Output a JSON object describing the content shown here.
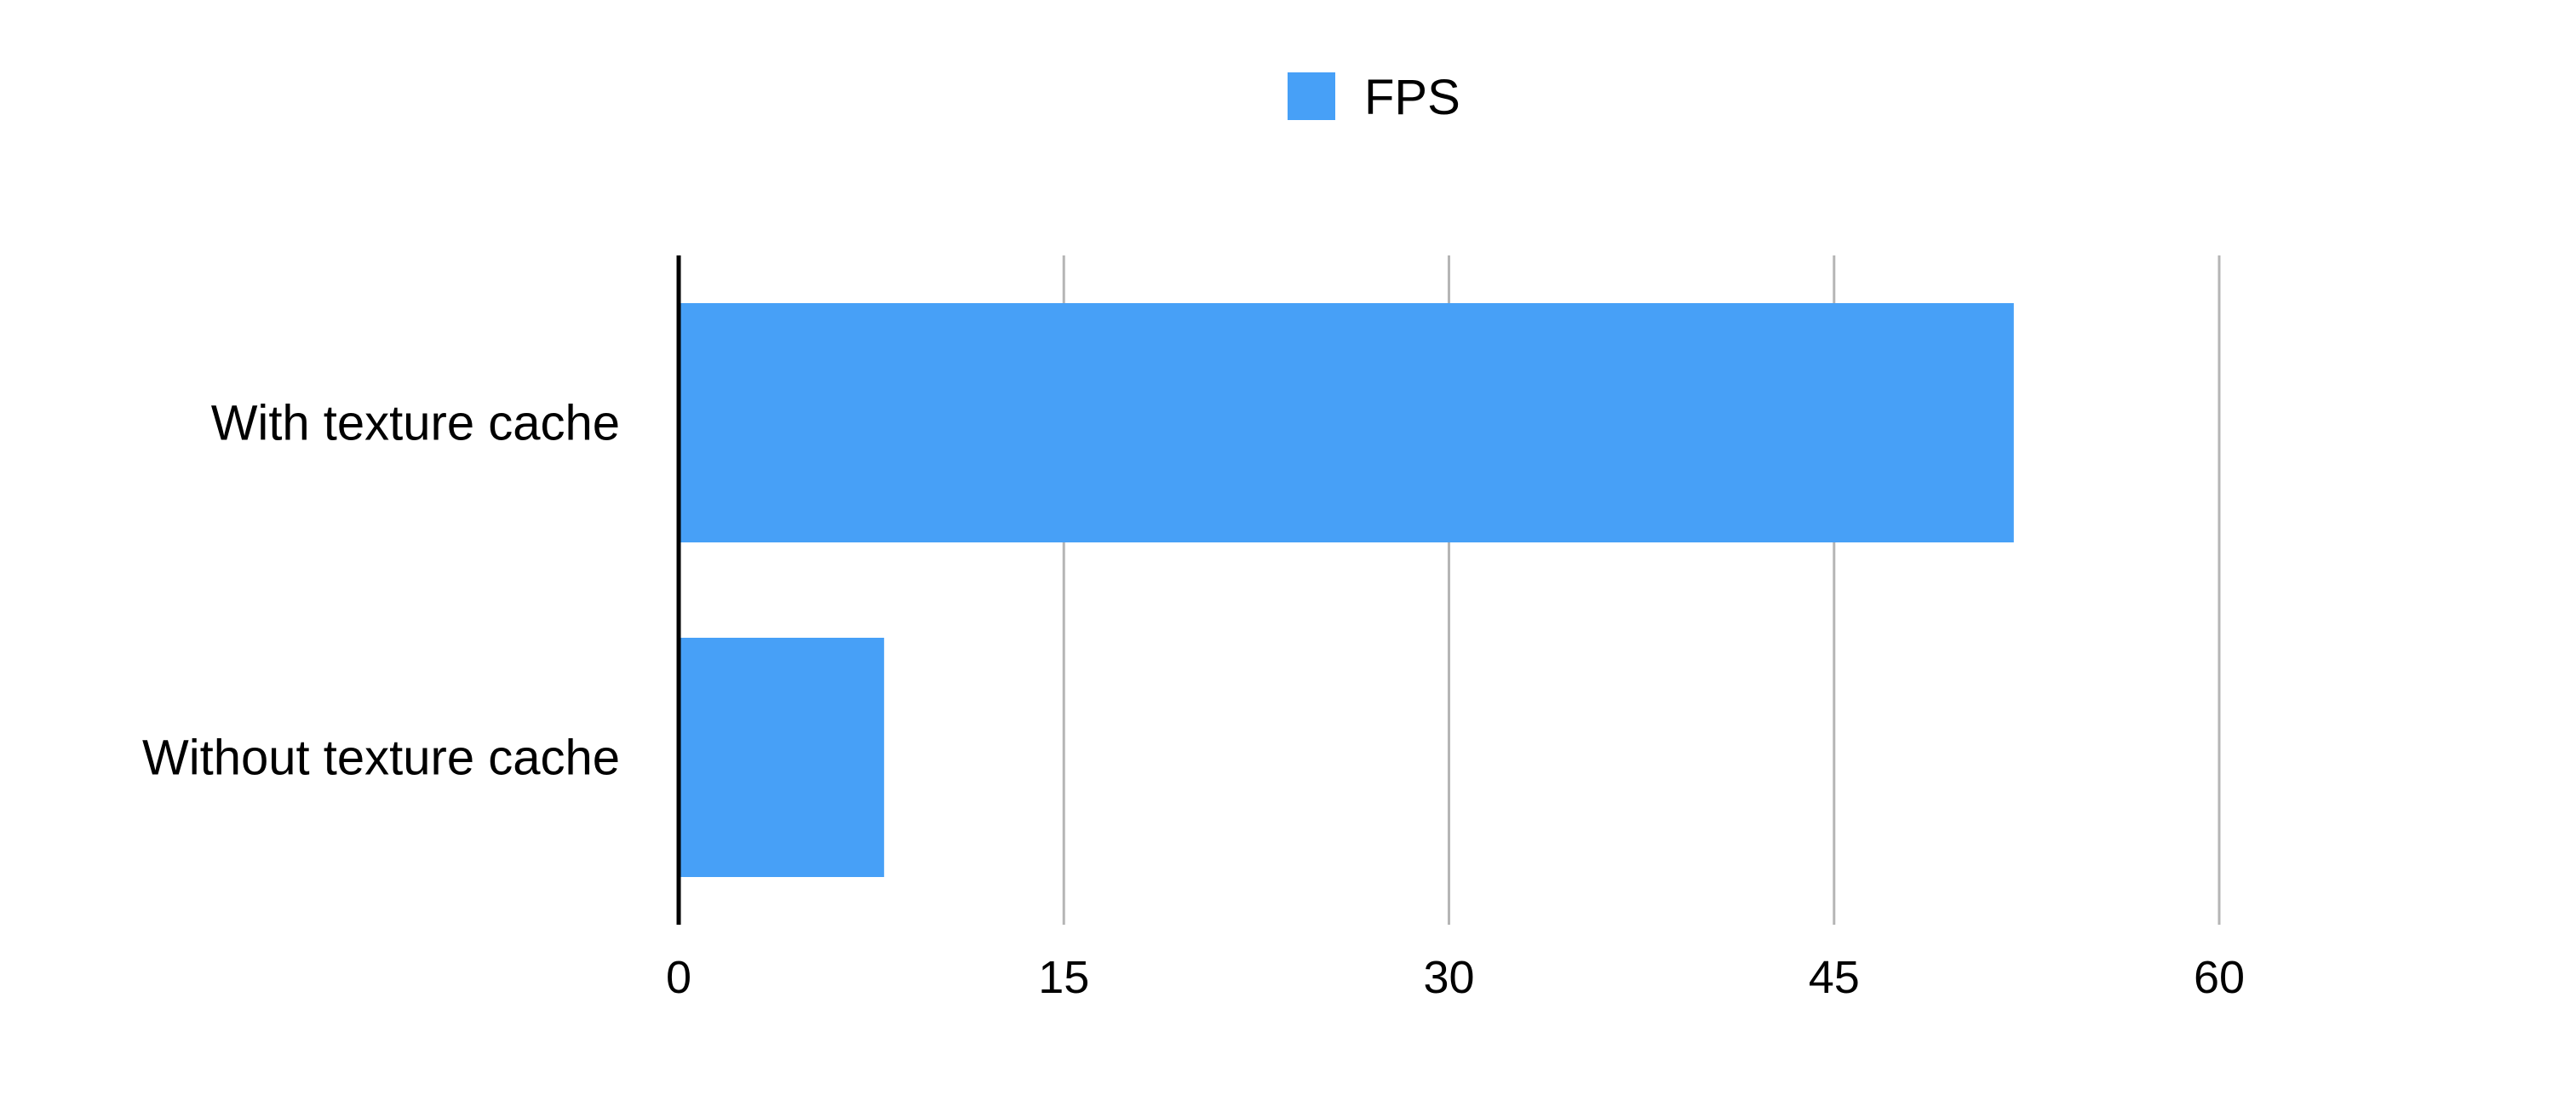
{
  "chart_data": {
    "type": "bar",
    "orientation": "horizontal",
    "categories": [
      "With texture cache",
      "Without texture cache"
    ],
    "series": [
      {
        "name": "FPS",
        "values": [
          52,
          8
        ],
        "color": "#47a0f7"
      }
    ],
    "xlim": [
      0,
      60
    ],
    "xticks": [
      0,
      15,
      30,
      45,
      60
    ],
    "title": "",
    "xlabel": "",
    "ylabel": "",
    "grid": "vertical",
    "legend": "top-center"
  }
}
